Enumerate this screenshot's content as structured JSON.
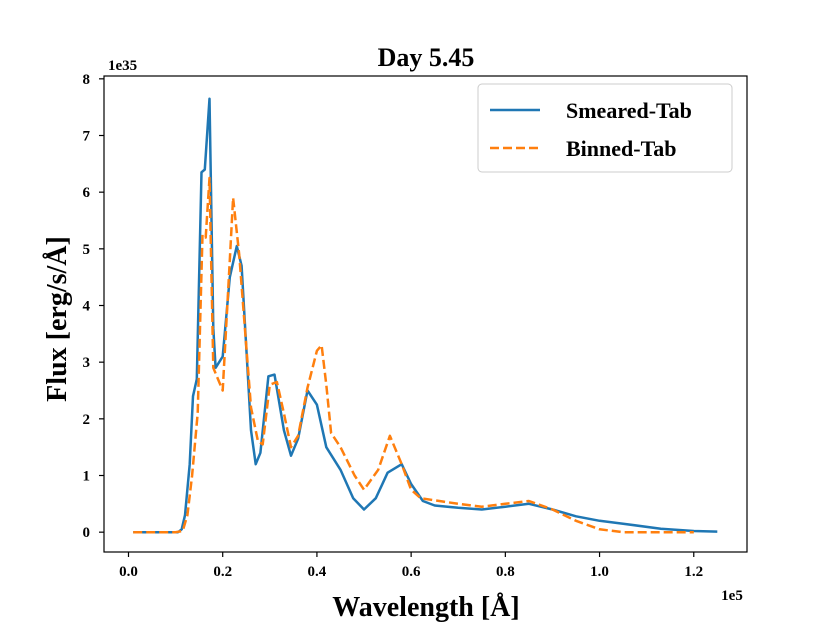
{
  "chart_data": {
    "type": "line",
    "title": "Day 5.45",
    "xlabel": "Wavelength [Å]",
    "ylabel": "Flux [erg/s/Å]",
    "x_offset_label": "1e5",
    "y_offset_label": "1e35",
    "xlim": [
      -0.052,
      1.313
    ],
    "ylim": [
      -0.35,
      8.05
    ],
    "xticks": [
      0.0,
      0.2,
      0.4,
      0.6,
      0.8,
      1.0,
      1.2
    ],
    "xtick_labels": [
      "0.0",
      "0.2",
      "0.4",
      "0.6",
      "0.8",
      "1.0",
      "1.2"
    ],
    "yticks": [
      0,
      1,
      2,
      3,
      4,
      5,
      6,
      7,
      8
    ],
    "ytick_labels": [
      "0",
      "1",
      "2",
      "3",
      "4",
      "5",
      "6",
      "7",
      "8"
    ],
    "legend_position": "top-right",
    "series": [
      {
        "name": "Smeared-Tab",
        "color": "#1f77b4",
        "dash": "solid",
        "points": [
          [
            0.01,
            0.0
          ],
          [
            0.04,
            0.0
          ],
          [
            0.08,
            0.0
          ],
          [
            0.105,
            0.0
          ],
          [
            0.113,
            0.05
          ],
          [
            0.12,
            0.3
          ],
          [
            0.13,
            1.2
          ],
          [
            0.137,
            2.4
          ],
          [
            0.145,
            2.7
          ],
          [
            0.155,
            6.35
          ],
          [
            0.162,
            6.4
          ],
          [
            0.172,
            7.65
          ],
          [
            0.18,
            3.6
          ],
          [
            0.185,
            2.9
          ],
          [
            0.2,
            3.1
          ],
          [
            0.215,
            4.5
          ],
          [
            0.23,
            5.05
          ],
          [
            0.24,
            4.7
          ],
          [
            0.26,
            1.8
          ],
          [
            0.27,
            1.2
          ],
          [
            0.28,
            1.4
          ],
          [
            0.297,
            2.75
          ],
          [
            0.31,
            2.78
          ],
          [
            0.33,
            1.8
          ],
          [
            0.345,
            1.35
          ],
          [
            0.36,
            1.65
          ],
          [
            0.38,
            2.5
          ],
          [
            0.4,
            2.25
          ],
          [
            0.42,
            1.5
          ],
          [
            0.45,
            1.1
          ],
          [
            0.477,
            0.6
          ],
          [
            0.5,
            0.4
          ],
          [
            0.525,
            0.6
          ],
          [
            0.55,
            1.05
          ],
          [
            0.58,
            1.2
          ],
          [
            0.6,
            0.85
          ],
          [
            0.625,
            0.55
          ],
          [
            0.65,
            0.47
          ],
          [
            0.7,
            0.43
          ],
          [
            0.75,
            0.4
          ],
          [
            0.8,
            0.45
          ],
          [
            0.85,
            0.5
          ],
          [
            0.9,
            0.4
          ],
          [
            0.95,
            0.28
          ],
          [
            1.0,
            0.2
          ],
          [
            1.05,
            0.15
          ],
          [
            1.13,
            0.06
          ],
          [
            1.2,
            0.02
          ],
          [
            1.25,
            0.01
          ]
        ]
      },
      {
        "name": "Binned-Tab",
        "color": "#ff7f0e",
        "dash": "dashed",
        "points": [
          [
            0.01,
            0.0
          ],
          [
            0.05,
            0.0
          ],
          [
            0.1,
            0.0
          ],
          [
            0.115,
            0.02
          ],
          [
            0.125,
            0.3
          ],
          [
            0.135,
            1.0
          ],
          [
            0.147,
            2.1
          ],
          [
            0.157,
            5.25
          ],
          [
            0.164,
            5.2
          ],
          [
            0.172,
            6.25
          ],
          [
            0.18,
            2.9
          ],
          [
            0.2,
            2.5
          ],
          [
            0.215,
            4.8
          ],
          [
            0.222,
            5.9
          ],
          [
            0.235,
            4.9
          ],
          [
            0.26,
            2.2
          ],
          [
            0.275,
            1.6
          ],
          [
            0.285,
            1.55
          ],
          [
            0.3,
            2.6
          ],
          [
            0.315,
            2.65
          ],
          [
            0.33,
            2.1
          ],
          [
            0.345,
            1.5
          ],
          [
            0.36,
            1.7
          ],
          [
            0.38,
            2.55
          ],
          [
            0.4,
            3.2
          ],
          [
            0.41,
            3.3
          ],
          [
            0.42,
            2.6
          ],
          [
            0.43,
            1.75
          ],
          [
            0.45,
            1.5
          ],
          [
            0.48,
            1.0
          ],
          [
            0.5,
            0.75
          ],
          [
            0.53,
            1.1
          ],
          [
            0.555,
            1.7
          ],
          [
            0.58,
            1.2
          ],
          [
            0.6,
            0.75
          ],
          [
            0.62,
            0.6
          ],
          [
            0.7,
            0.5
          ],
          [
            0.75,
            0.45
          ],
          [
            0.8,
            0.5
          ],
          [
            0.85,
            0.55
          ],
          [
            0.9,
            0.4
          ],
          [
            0.95,
            0.2
          ],
          [
            1.0,
            0.05
          ],
          [
            1.05,
            0.0
          ],
          [
            1.1,
            0.0
          ],
          [
            1.2,
            0.0
          ]
        ]
      }
    ]
  }
}
